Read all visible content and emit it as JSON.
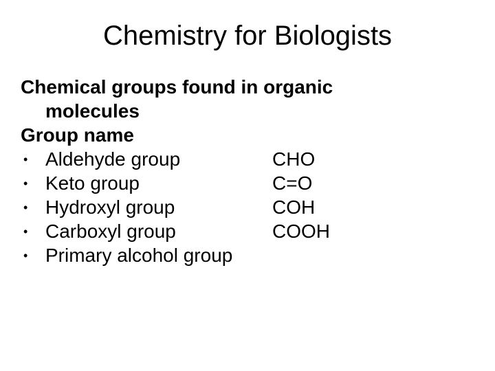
{
  "title": "Chemistry for Biologists",
  "heading_line1": "Chemical groups found in organic",
  "heading_line2": "molecules",
  "subheading": "Group name",
  "groups": [
    {
      "name": "Aldehyde group",
      "formula": "CHO"
    },
    {
      "name": "Keto group",
      "formula": "C=O"
    },
    {
      "name": "Hydroxyl group",
      "formula": "COH"
    },
    {
      "name": "Carboxyl group",
      "formula": "COOH"
    },
    {
      "name": "Primary alcohol group",
      "formula": ""
    }
  ],
  "colors": {
    "background": "#ffffff",
    "text": "#000000"
  },
  "typography": {
    "title_fontsize": 40,
    "body_fontsize": 28,
    "title_weight": "400",
    "heading_weight": "700",
    "font_family": "Arial"
  }
}
